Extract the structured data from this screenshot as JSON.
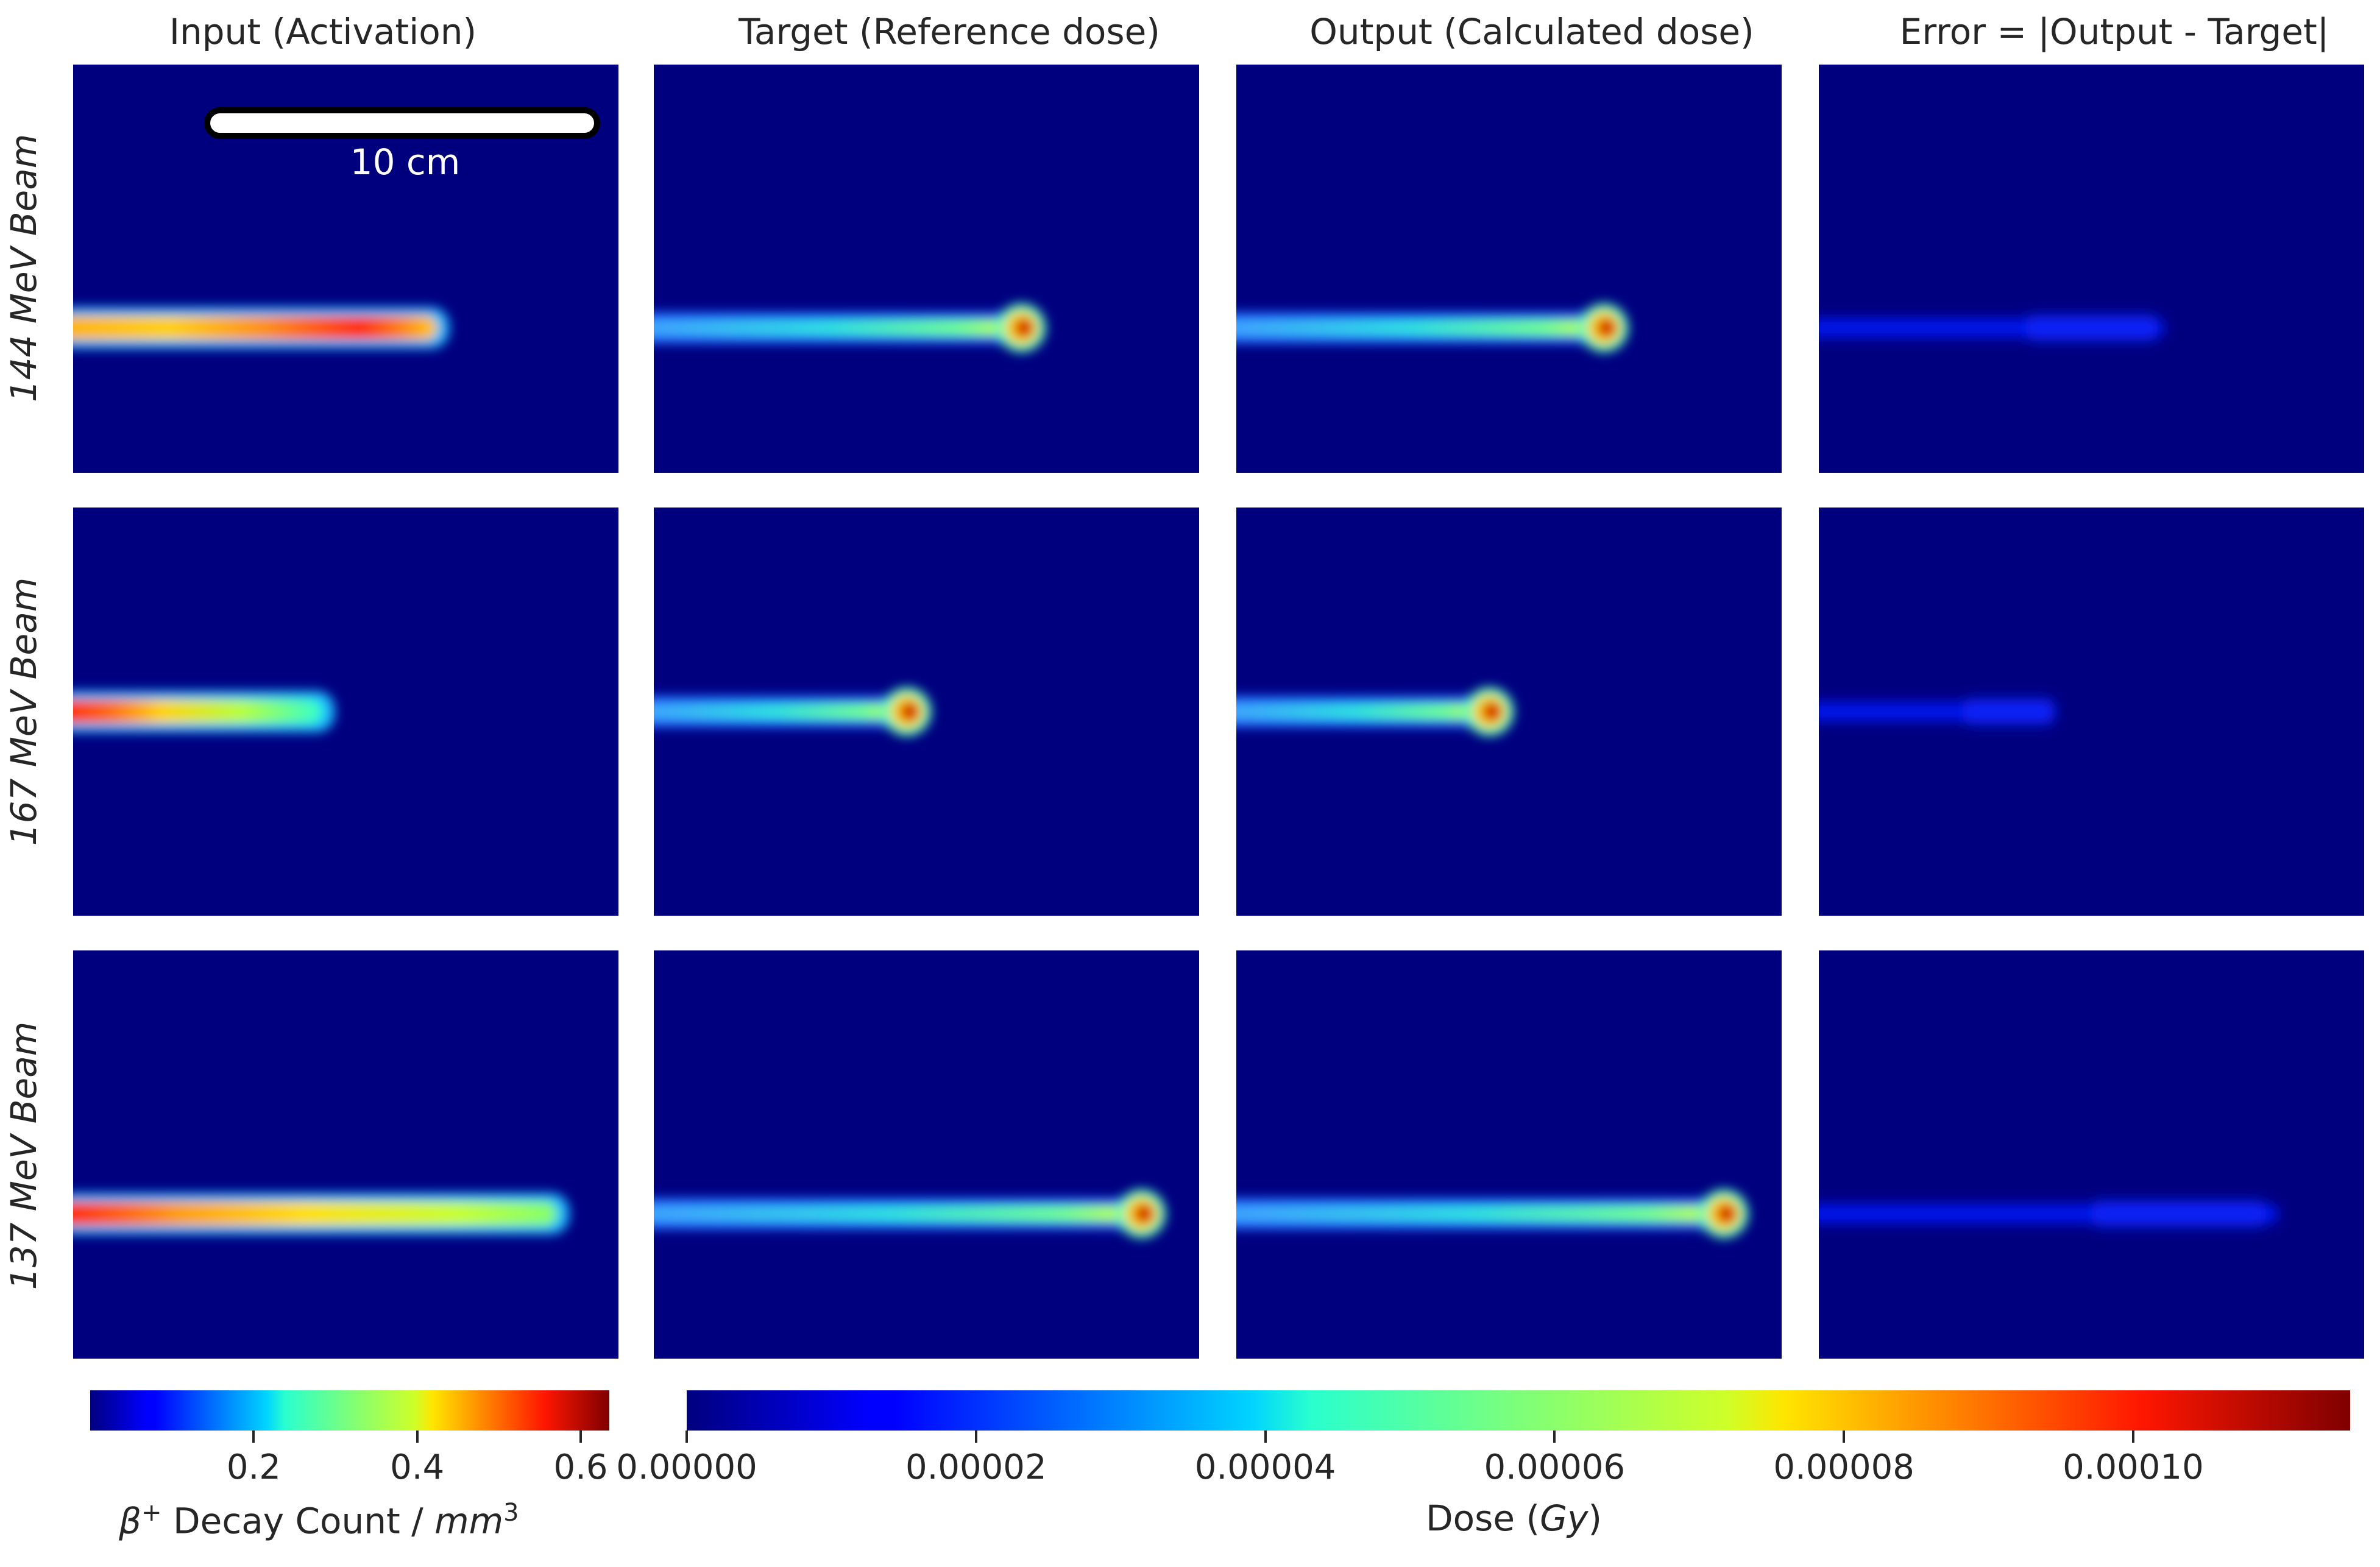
{
  "columns": [
    {
      "title": "Input (Activation)"
    },
    {
      "title": "Target (Reference dose)"
    },
    {
      "title": "Output (Calculated dose)"
    },
    {
      "title": "Error = |Output - Target|"
    }
  ],
  "rows": [
    {
      "label": "144 MeV Beam",
      "beam_end_fraction": 0.69
    },
    {
      "label": "167 MeV Beam",
      "beam_end_fraction": 0.48
    },
    {
      "label": "137 MeV Beam",
      "beam_end_fraction": 0.91
    }
  ],
  "scale_bar": {
    "label": "10 cm"
  },
  "colorbars": {
    "activation": {
      "ticks": [
        "0.2",
        "0.4",
        "0.6"
      ],
      "tick_values": [
        0.2,
        0.4,
        0.6
      ],
      "range": [
        0.0,
        0.635
      ],
      "label_prefix": "β",
      "label_sup": "+",
      "label_mid": " Decay Count  / ",
      "label_unit": "mm",
      "label_unit_sup": "3"
    },
    "dose": {
      "ticks": [
        "0.00000",
        "0.00002",
        "0.00004",
        "0.00006",
        "0.00008",
        "0.00010"
      ],
      "tick_values": [
        0.0,
        2e-05,
        4e-05,
        6e-05,
        8e-05,
        0.0001
      ],
      "range": [
        0.0,
        0.000115
      ],
      "label_text": "Dose (",
      "label_unit": "Gy",
      "label_close": ")"
    }
  },
  "colormap": "jet"
}
